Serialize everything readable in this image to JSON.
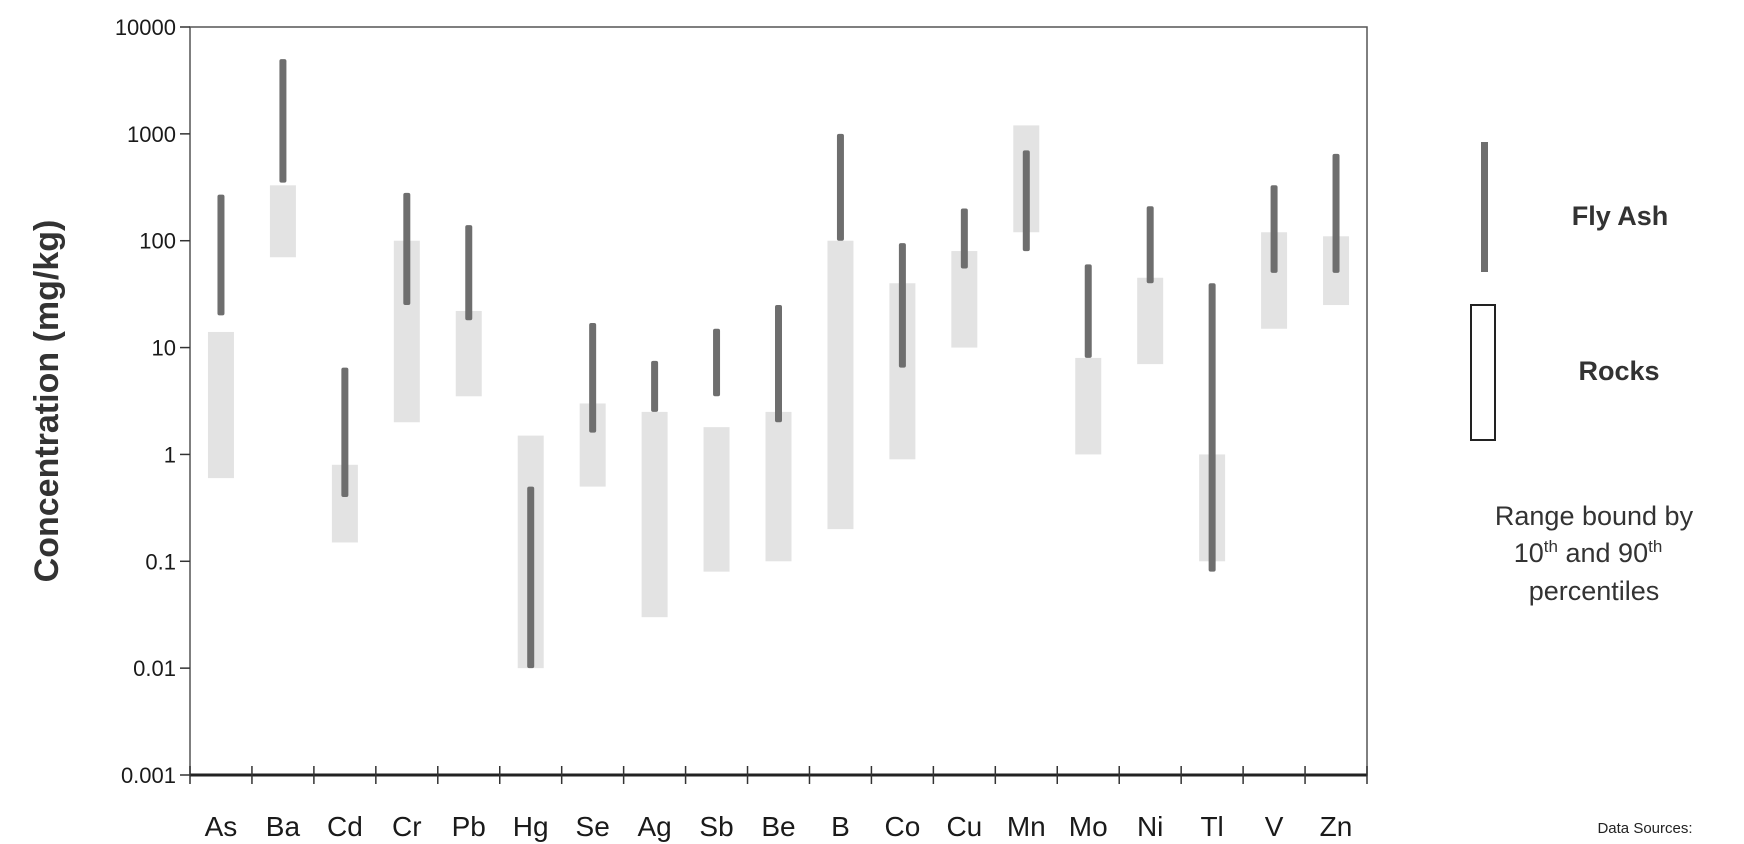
{
  "chart_data": {
    "type": "range-bar",
    "ylabel": "Concentration (mg/kg)",
    "yscale": "log",
    "ylim": [
      0.001,
      10000
    ],
    "yticks": [
      "10000",
      "1000",
      "100",
      "10",
      "1",
      "0.1",
      "0.01",
      "0.001"
    ],
    "categories": [
      "As",
      "Ba",
      "Cd",
      "Cr",
      "Pb",
      "Hg",
      "Se",
      "Ag",
      "Sb",
      "Be",
      "B",
      "Co",
      "Cu",
      "Mn",
      "Mo",
      "Ni",
      "Tl",
      "V",
      "Zn"
    ],
    "series": [
      {
        "name": "Fly Ash",
        "color": "#6e6e6e",
        "ranges": [
          [
            20,
            270
          ],
          [
            350,
            5000
          ],
          [
            0.4,
            6.5
          ],
          [
            25,
            280
          ],
          [
            18,
            140
          ],
          [
            0.01,
            0.5
          ],
          [
            1.6,
            17
          ],
          [
            2.5,
            7.5
          ],
          [
            3.5,
            15
          ],
          [
            2,
            25
          ],
          [
            100,
            1000
          ],
          [
            6.5,
            95
          ],
          [
            55,
            200
          ],
          [
            80,
            700
          ],
          [
            8,
            60
          ],
          [
            40,
            210
          ],
          [
            0.08,
            40
          ],
          [
            50,
            330
          ],
          [
            50,
            650
          ]
        ]
      },
      {
        "name": "Rocks",
        "color": "#e3e3e3",
        "ranges": [
          [
            0.6,
            14
          ],
          [
            70,
            330
          ],
          [
            0.15,
            0.8
          ],
          [
            2,
            100
          ],
          [
            3.5,
            22
          ],
          [
            0.01,
            1.5
          ],
          [
            0.5,
            3
          ],
          [
            0.03,
            2.5
          ],
          [
            0.08,
            1.8
          ],
          [
            0.1,
            2.5
          ],
          [
            0.2,
            100
          ],
          [
            0.9,
            40
          ],
          [
            10,
            80
          ],
          [
            120,
            1200
          ],
          [
            1,
            8
          ],
          [
            7,
            45
          ],
          [
            0.1,
            1
          ],
          [
            15,
            120
          ],
          [
            25,
            110
          ]
        ]
      }
    ],
    "legend": {
      "position": "right",
      "items": [
        "Fly Ash",
        "Rocks"
      ]
    },
    "note": {
      "prefix": "Range bound by",
      "p10": "10",
      "p10_sup": "th",
      "and": "and",
      "p90": "90",
      "p90_sup": "th",
      "suffix": "percentiles"
    },
    "source_label": "Data Sources:"
  }
}
